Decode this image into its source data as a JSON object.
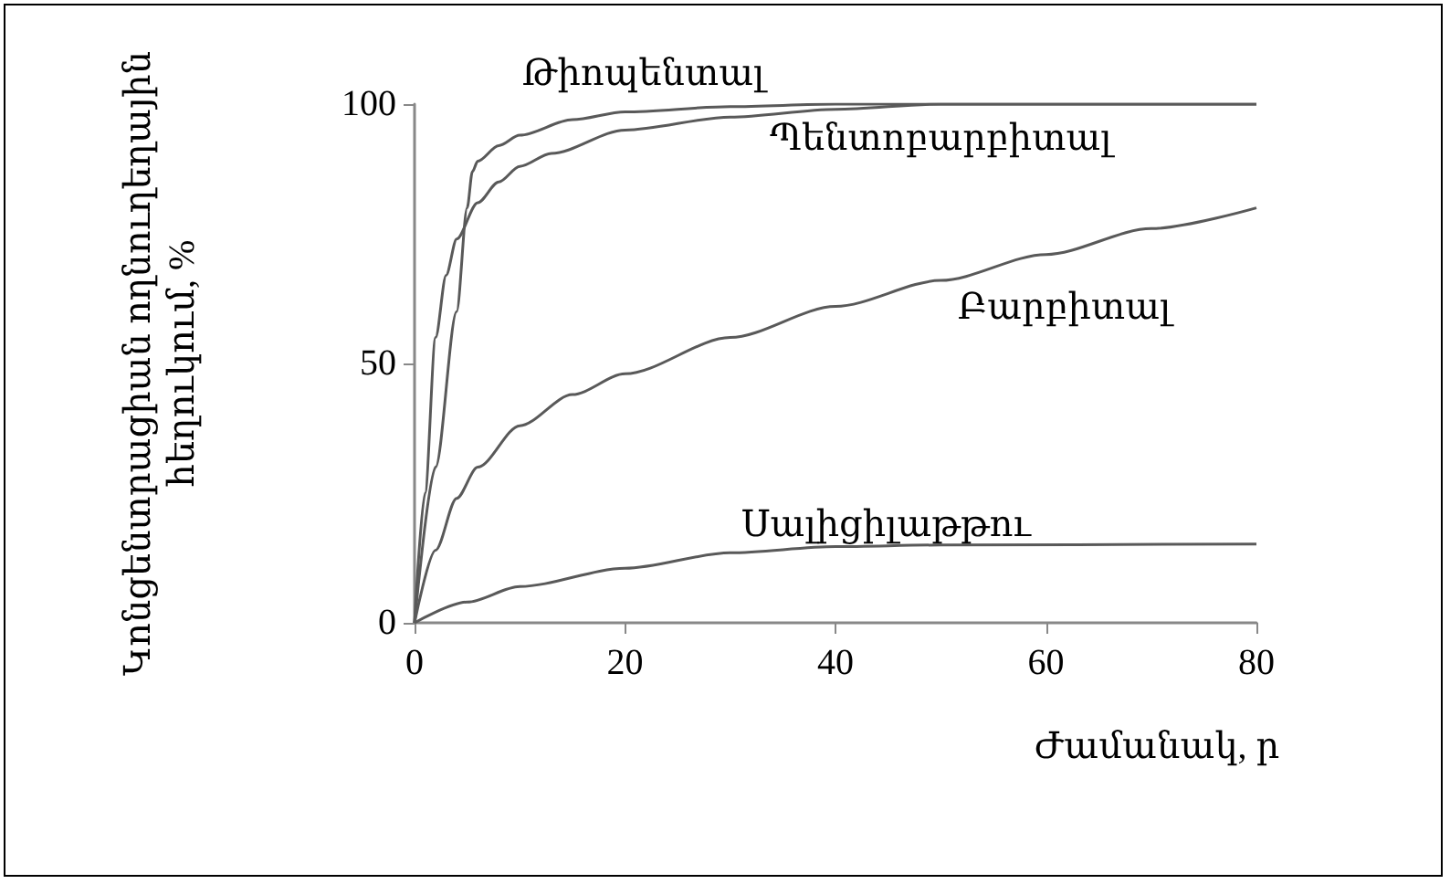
{
  "chart_data": {
    "type": "line",
    "xlabel": "Ժամանակ, ր",
    "ylabel": "Կոնցենտրացիան ողնուղեղային հեղուկում, %",
    "xlim": [
      0,
      80
    ],
    "xticks": [
      0,
      20,
      40,
      60,
      80
    ],
    "ylim": [
      0,
      100
    ],
    "yticks": [
      0,
      50,
      100
    ],
    "grid": false,
    "series": [
      {
        "name": "Թիոպենտալ",
        "color": "#595959",
        "x": [
          0,
          2,
          4,
          5,
          5.5,
          6,
          8,
          10,
          15,
          20,
          30,
          40,
          80
        ],
        "values": [
          0,
          30,
          60,
          80,
          87,
          89,
          92,
          94,
          97,
          98.5,
          99.5,
          100,
          100
        ]
      },
      {
        "name": "Պենտոբարբիտալ",
        "color": "#595959",
        "x": [
          0,
          1,
          2,
          3,
          4,
          6,
          8,
          10,
          13,
          20,
          30,
          40,
          50,
          80
        ],
        "values": [
          0,
          25,
          55,
          67,
          74,
          81,
          85,
          88,
          90.5,
          95,
          97.5,
          99,
          100,
          100
        ]
      },
      {
        "name": "Բարբիտալ",
        "color": "#595959",
        "x": [
          0,
          2,
          4,
          6,
          10,
          15,
          20,
          30,
          40,
          50,
          60,
          70,
          80
        ],
        "values": [
          0,
          14,
          24,
          30,
          38,
          44,
          48,
          55,
          61,
          66,
          71,
          76,
          80
        ]
      },
      {
        "name": "Սալիցիլաթթու",
        "color": "#595959",
        "x": [
          0,
          5,
          10,
          20,
          30,
          40,
          50,
          80
        ],
        "values": [
          0,
          4,
          7,
          10.5,
          13.5,
          14.7,
          15,
          15.2
        ]
      }
    ]
  }
}
